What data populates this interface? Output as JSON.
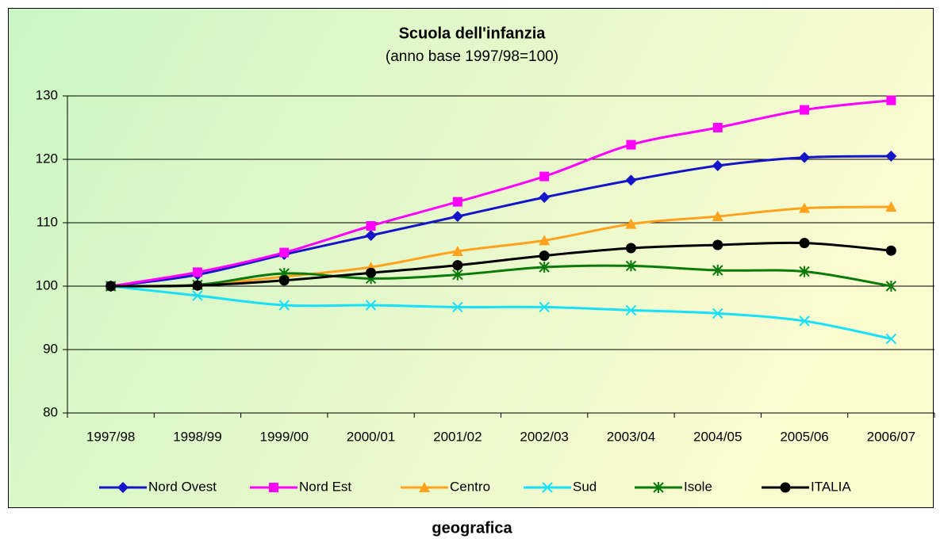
{
  "chart_data": {
    "type": "line",
    "title": "Scuola dell'infanzia",
    "subtitle": "(anno base 1997/98=100)",
    "caption": "geografica",
    "categories": [
      "1997/98",
      "1998/99",
      "1999/00",
      "2000/01",
      "2001/02",
      "2002/03",
      "2003/04",
      "2004/05",
      "2005/06",
      "2006/07"
    ],
    "series": [
      {
        "name": "Nord Ovest",
        "color": "#1414c8",
        "marker": "diamond",
        "values": [
          100,
          101.8,
          105,
          108,
          111,
          114,
          116.7,
          119,
          120.3,
          120.5
        ]
      },
      {
        "name": "Nord Est",
        "color": "#ff00ff",
        "marker": "square",
        "values": [
          100,
          102.2,
          105.3,
          109.5,
          113.3,
          117.3,
          122.3,
          125,
          127.8,
          129.3
        ]
      },
      {
        "name": "Centro",
        "color": "#ffa31f",
        "marker": "triangle",
        "values": [
          100,
          100.2,
          101.5,
          103,
          105.5,
          107.2,
          109.8,
          111,
          112.3,
          112.5
        ]
      },
      {
        "name": "Sud",
        "color": "#18e0f8",
        "marker": "x",
        "values": [
          100,
          98.5,
          97,
          97,
          96.7,
          96.7,
          96.2,
          95.7,
          94.5,
          91.7
        ]
      },
      {
        "name": "Isole",
        "color": "#0a7a0a",
        "marker": "star",
        "values": [
          100,
          100.2,
          102,
          101.2,
          101.8,
          103,
          103.2,
          102.5,
          102.3,
          100
        ]
      },
      {
        "name": "ITALIA",
        "color": "#000000",
        "marker": "circle",
        "values": [
          100,
          100.1,
          100.9,
          102.1,
          103.3,
          104.8,
          106,
          106.5,
          106.8,
          105.6
        ]
      }
    ],
    "ylim": [
      80,
      130
    ],
    "yticks": [
      80,
      90,
      100,
      110,
      120,
      130
    ],
    "grid": true,
    "legend": "bottom"
  }
}
